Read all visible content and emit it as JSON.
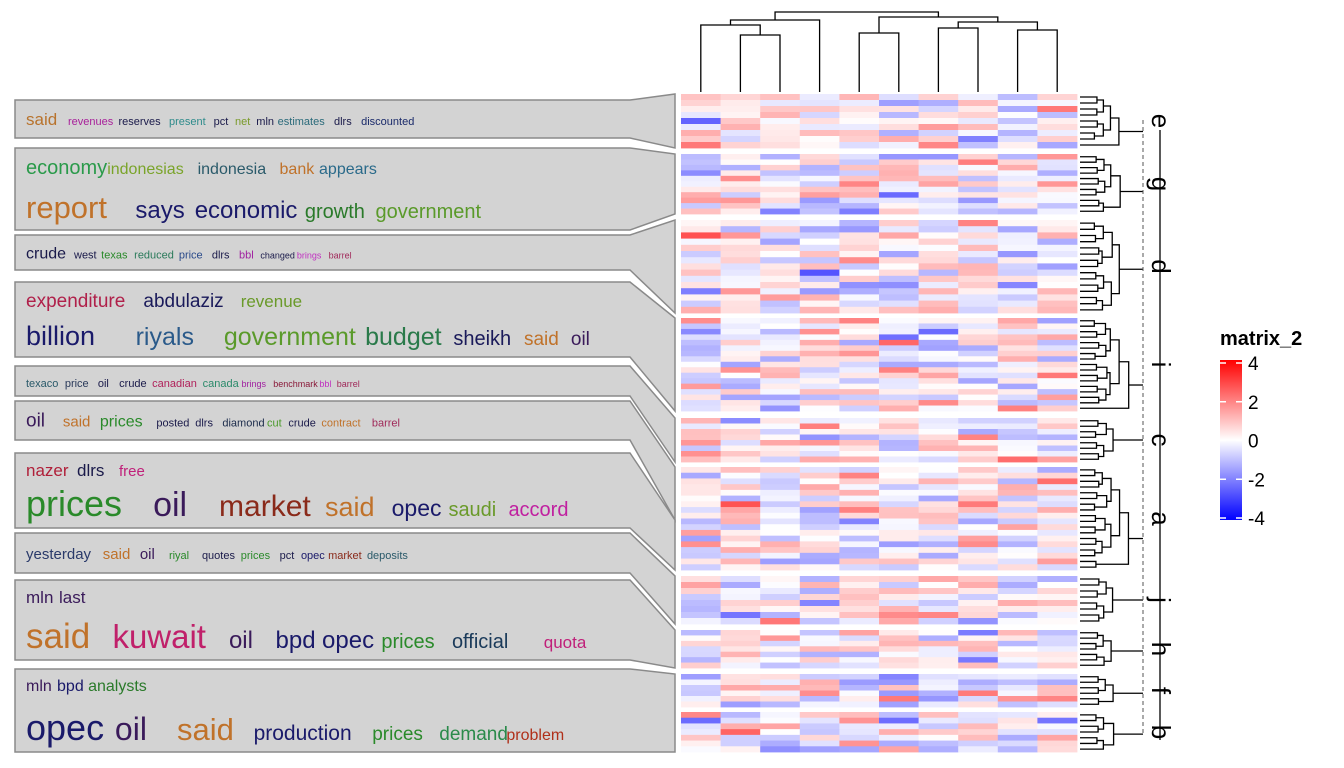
{
  "chart_data": {
    "type": "heatmap",
    "n_columns": 10,
    "legend": {
      "title": "matrix_2",
      "placement": "right",
      "ticks": [
        4,
        2,
        0,
        -2,
        -4
      ],
      "tick_labels": [
        "4",
        "2",
        "0",
        "-2",
        "-4"
      ],
      "colors": {
        "high": "#ff0000",
        "mid": "#ffffff",
        "low": "#0000ff"
      },
      "range": [
        -4,
        4
      ]
    },
    "row_slices": [
      {
        "label": "e",
        "n_rows": 9
      },
      {
        "label": "g",
        "n_rows": 11
      },
      {
        "label": "d",
        "n_rows": 15
      },
      {
        "label": "i",
        "n_rows": 17
      },
      {
        "label": "c",
        "n_rows": 8
      },
      {
        "label": "a",
        "n_rows": 18
      },
      {
        "label": "j",
        "n_rows": 8
      },
      {
        "label": "h",
        "n_rows": 7
      },
      {
        "label": "f",
        "n_rows": 6
      },
      {
        "label": "b",
        "n_rows": 7
      }
    ],
    "word_clouds": [
      {
        "slice": "e",
        "lines": [
          [
            {
              "w": "said",
              "s": 17,
              "c": "#b8732d"
            },
            {
              "w": "revenues",
              "s": 11,
              "c": "#a8209a"
            },
            {
              "w": "reserves",
              "s": 11,
              "c": "#1a1a4a"
            },
            {
              "w": "present",
              "s": 11,
              "c": "#2e8b8b"
            },
            {
              "w": "pct",
              "s": 11,
              "c": "#1a1a4a"
            },
            {
              "w": "net",
              "s": 11,
              "c": "#7a9a2a"
            },
            {
              "w": "mln",
              "s": 11,
              "c": "#1a1a4a"
            },
            {
              "w": "estimates",
              "s": 11,
              "c": "#2a6a7a"
            },
            {
              "w": "dlrs",
              "s": 11,
              "c": "#1a1a4a"
            },
            {
              "w": "discounted",
              "s": 11,
              "c": "#1a2a6a"
            }
          ]
        ]
      },
      {
        "slice": "g",
        "lines": [
          [
            {
              "w": "economy",
              "s": 20,
              "c": "#2a9a4a"
            },
            {
              "w": "indonesias",
              "s": 16,
              "c": "#7aa42a"
            },
            {
              "w": "indonesia",
              "s": 16,
              "c": "#2a5a6a"
            },
            {
              "w": "bank",
              "s": 16,
              "c": "#c0722a"
            },
            {
              "w": "appears",
              "s": 16,
              "c": "#2a6a8a"
            }
          ],
          [
            {
              "w": "report",
              "s": 31,
              "c": "#c0722a"
            },
            {
              "w": "says",
              "s": 24,
              "c": "#1a1a6a"
            },
            {
              "w": "economic",
              "s": 24,
              "c": "#1a1a6a"
            },
            {
              "w": "growth",
              "s": 20,
              "c": "#2a7a2a"
            },
            {
              "w": "government",
              "s": 20,
              "c": "#5a9a2a"
            }
          ]
        ]
      },
      {
        "slice": "d",
        "lines": [
          [
            {
              "w": "crude",
              "s": 16,
              "c": "#1a1a4a"
            },
            {
              "w": "west",
              "s": 11,
              "c": "#1a1a4a"
            },
            {
              "w": "texas",
              "s": 11,
              "c": "#2a8a2a"
            },
            {
              "w": "reduced",
              "s": 11,
              "c": "#2a7a5a"
            },
            {
              "w": "price",
              "s": 11,
              "c": "#2a4a8a"
            },
            {
              "w": "dlrs",
              "s": 11,
              "c": "#1a1a4a"
            },
            {
              "w": "bbl",
              "s": 11,
              "c": "#a020a0"
            },
            {
              "w": "changed",
              "s": 9,
              "c": "#1a1a4a"
            },
            {
              "w": "brings",
              "s": 9,
              "c": "#c030c0"
            },
            {
              "w": "barrel",
              "s": 9,
              "c": "#a02a5a"
            }
          ]
        ]
      },
      {
        "slice": "i",
        "lines": [
          [
            {
              "w": "expenditure",
              "s": 19,
              "c": "#b0204a"
            },
            {
              "w": "abdulaziz",
              "s": 19,
              "c": "#1a1a5a"
            },
            {
              "w": "revenue",
              "s": 17,
              "c": "#6a9a2a"
            }
          ],
          [
            {
              "w": "billion",
              "s": 27,
              "c": "#1a1a6a"
            },
            {
              "w": "riyals",
              "s": 25,
              "c": "#2a5a8a"
            },
            {
              "w": "government",
              "s": 25,
              "c": "#5a9a2a"
            },
            {
              "w": "budget",
              "s": 25,
              "c": "#2a7a4a"
            },
            {
              "w": "sheikh",
              "s": 20,
              "c": "#1a1a5a"
            },
            {
              "w": "said",
              "s": 19,
              "c": "#c0722a"
            },
            {
              "w": "oil",
              "s": 19,
              "c": "#3a1a5a"
            }
          ]
        ]
      },
      {
        "slice": "c",
        "lines": [
          [
            {
              "w": "texaco",
              "s": 11,
              "c": "#2a5a6a"
            },
            {
              "w": "price",
              "s": 11,
              "c": "#2a3a5a"
            },
            {
              "w": "oil",
              "s": 11,
              "c": "#1a1a4a"
            },
            {
              "w": "crude",
              "s": 11,
              "c": "#1a1a4a"
            },
            {
              "w": "canadian",
              "s": 11,
              "c": "#b0205a"
            },
            {
              "w": "canada",
              "s": 11,
              "c": "#2a8a6a"
            },
            {
              "w": "brings",
              "s": 9,
              "c": "#a020a0"
            },
            {
              "w": "benchmark",
              "s": 9,
              "c": "#8a1a3a"
            },
            {
              "w": "bbl",
              "s": 9,
              "c": "#c030c0"
            },
            {
              "w": "barrel",
              "s": 9,
              "c": "#a02a5a"
            }
          ]
        ]
      },
      {
        "slice": "a1",
        "lines": [
          [
            {
              "w": "oil",
              "s": 19,
              "c": "#3a1a5a"
            },
            {
              "w": "said",
              "s": 15,
              "c": "#c0722a"
            },
            {
              "w": "prices",
              "s": 16,
              "c": "#2a8a2a"
            },
            {
              "w": "posted",
              "s": 11,
              "c": "#1a1a4a"
            },
            {
              "w": "dlrs",
              "s": 11,
              "c": "#1a1a4a"
            },
            {
              "w": "diamond",
              "s": 11,
              "c": "#1a2a4a"
            },
            {
              "w": "cut",
              "s": 11,
              "c": "#4a9a2a"
            },
            {
              "w": "crude",
              "s": 11,
              "c": "#1a1a4a"
            },
            {
              "w": "contract",
              "s": 11,
              "c": "#c0722a"
            },
            {
              "w": "barrel",
              "s": 11,
              "c": "#a02a5a"
            }
          ]
        ]
      },
      {
        "slice": "a2",
        "lines": [
          [
            {
              "w": "nazer",
              "s": 17,
              "c": "#b0203a"
            },
            {
              "w": "dlrs",
              "s": 17,
              "c": "#1a1a4a"
            },
            {
              "w": "free",
              "s": 15,
              "c": "#c0207a"
            }
          ],
          [
            {
              "w": "prices",
              "s": 36,
              "c": "#2a8a2a"
            },
            {
              "w": "oil",
              "s": 34,
              "c": "#3a1a5a"
            },
            {
              "w": "market",
              "s": 30,
              "c": "#8a2a1a"
            },
            {
              "w": "said",
              "s": 27,
              "c": "#c0722a"
            },
            {
              "w": "opec",
              "s": 23,
              "c": "#1a1a6a"
            },
            {
              "w": "saudi",
              "s": 20,
              "c": "#6a9a2a"
            },
            {
              "w": "accord",
              "s": 20,
              "c": "#c020a0"
            }
          ]
        ]
      },
      {
        "slice": "j",
        "lines": [
          [
            {
              "w": "yesterday",
              "s": 15,
              "c": "#2a3a6a"
            },
            {
              "w": "said",
              "s": 15,
              "c": "#c0722a"
            },
            {
              "w": "oil",
              "s": 15,
              "c": "#3a1a5a"
            },
            {
              "w": "riyal",
              "s": 11,
              "c": "#2a8a2a"
            },
            {
              "w": "quotes",
              "s": 11,
              "c": "#1a1a4a"
            },
            {
              "w": "prices",
              "s": 11,
              "c": "#2a8a2a"
            },
            {
              "w": "pct",
              "s": 11,
              "c": "#1a1a4a"
            },
            {
              "w": "opec",
              "s": 11,
              "c": "#1a1a6a"
            },
            {
              "w": "market",
              "s": 11,
              "c": "#8a2a1a"
            },
            {
              "w": "deposits",
              "s": 11,
              "c": "#2a5a6a"
            }
          ]
        ]
      },
      {
        "slice": "h",
        "lines": [
          [
            {
              "w": "mln",
              "s": 17,
              "c": "#3a1a5a"
            },
            {
              "w": "last",
              "s": 17,
              "c": "#3a1a5a"
            }
          ],
          [
            {
              "w": "said",
              "s": 35,
              "c": "#c0722a"
            },
            {
              "w": "kuwait",
              "s": 33,
              "c": "#c0206a"
            },
            {
              "w": "oil",
              "s": 24,
              "c": "#3a1a5a"
            },
            {
              "w": "bpd",
              "s": 24,
              "c": "#1a1a6a"
            },
            {
              "w": "opec",
              "s": 24,
              "c": "#1a1a6a"
            },
            {
              "w": "prices",
              "s": 20,
              "c": "#2a8a2a"
            },
            {
              "w": "official",
              "s": 20,
              "c": "#1a3a5a"
            },
            {
              "w": "quota",
              "s": 17,
              "c": "#c0207a"
            }
          ]
        ]
      },
      {
        "slice": "b",
        "lines": [
          [
            {
              "w": "mln",
              "s": 16,
              "c": "#3a1a5a"
            },
            {
              "w": "bpd",
              "s": 16,
              "c": "#1a1a6a"
            },
            {
              "w": "analysts",
              "s": 16,
              "c": "#2a7a2a"
            }
          ],
          [
            {
              "w": "opec",
              "s": 36,
              "c": "#1a1a6a"
            },
            {
              "w": "oil",
              "s": 32,
              "c": "#3a1a5a"
            },
            {
              "w": "said",
              "s": 31,
              "c": "#c0722a"
            },
            {
              "w": "production",
              "s": 21,
              "c": "#1a1a6a"
            },
            {
              "w": "prices",
              "s": 19,
              "c": "#2a8a2a"
            },
            {
              "w": "demand",
              "s": 19,
              "c": "#2a8a4a"
            },
            {
              "w": "problem",
              "s": 16,
              "c": "#b0301a"
            }
          ]
        ]
      }
    ]
  }
}
